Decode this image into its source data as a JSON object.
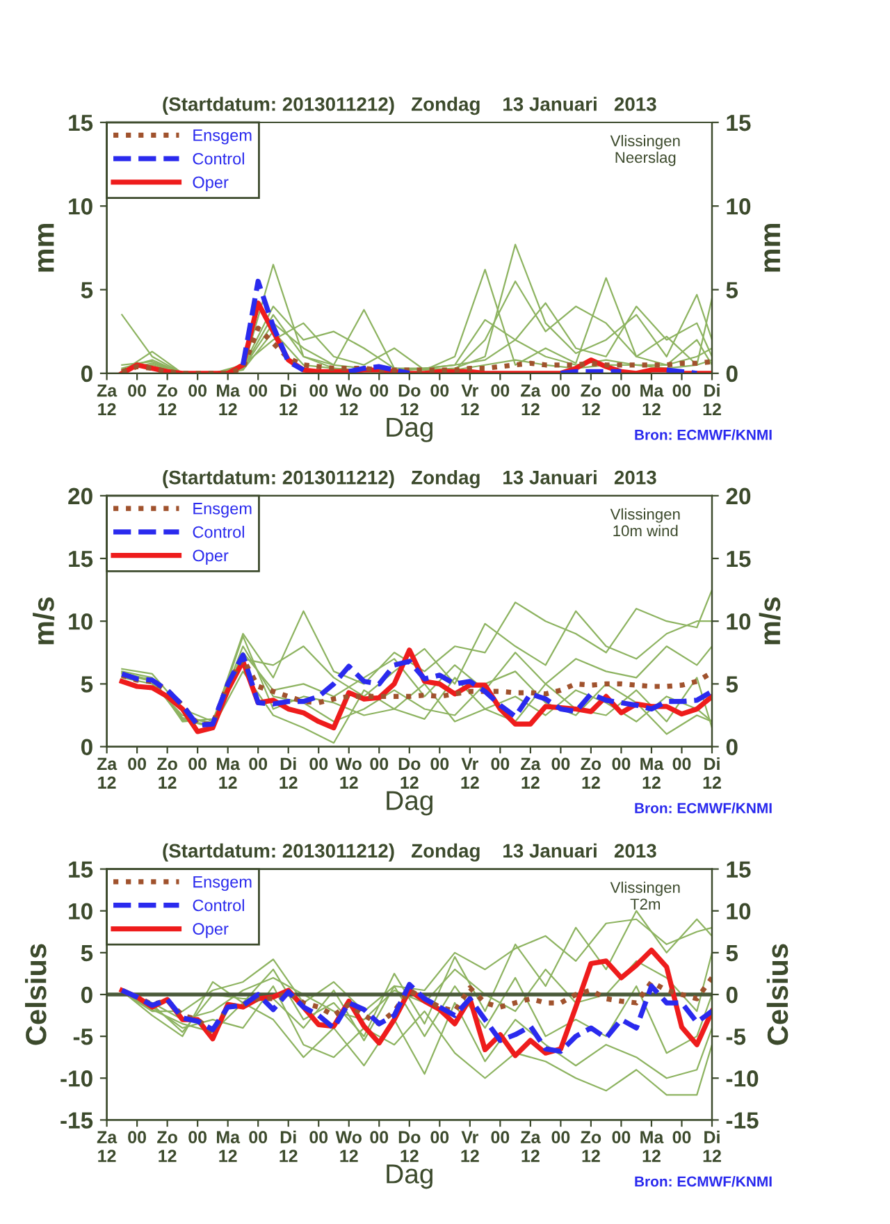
{
  "chart_data": [
    {
      "type": "line",
      "title": "(Startdatum: 2013011212)   Zondag    13 Januari   2013",
      "xlabel": "Dag",
      "ylabel": "mm",
      "y2label": "mm",
      "annotations": [
        "Vlissingen\nNeerslag",
        "Bron: ECMWF/KNMI"
      ],
      "xlim": [
        "2013-01-12T12:00",
        "2013-01-22T12:00"
      ],
      "xticks": [
        {
          "value": "2013-01-12T12:00",
          "label": "Za\n12"
        },
        {
          "value": "2013-01-13T00:00",
          "label": "00"
        },
        {
          "value": "2013-01-13T12:00",
          "label": "Zo\n12"
        },
        {
          "value": "2013-01-14T00:00",
          "label": "00"
        },
        {
          "value": "2013-01-14T12:00",
          "label": "Ma\n12"
        },
        {
          "value": "2013-01-15T00:00",
          "label": "00"
        },
        {
          "value": "2013-01-15T12:00",
          "label": "Di\n12"
        },
        {
          "value": "2013-01-16T00:00",
          "label": "00"
        },
        {
          "value": "2013-01-16T12:00",
          "label": "Wo\n12"
        },
        {
          "value": "2013-01-17T00:00",
          "label": "00"
        },
        {
          "value": "2013-01-17T12:00",
          "label": "Do\n12"
        },
        {
          "value": "2013-01-18T00:00",
          "label": "00"
        },
        {
          "value": "2013-01-18T12:00",
          "label": "Vr\n12"
        },
        {
          "value": "2013-01-19T00:00",
          "label": "00"
        },
        {
          "value": "2013-01-19T12:00",
          "label": "Za\n12"
        },
        {
          "value": "2013-01-20T00:00",
          "label": "00"
        },
        {
          "value": "2013-01-20T12:00",
          "label": "Zo\n12"
        },
        {
          "value": "2013-01-21T00:00",
          "label": "00"
        },
        {
          "value": "2013-01-21T12:00",
          "label": "Ma\n12"
        },
        {
          "value": "2013-01-22T00:00",
          "label": "00"
        },
        {
          "value": "2013-01-22T12:00",
          "label": "Di\n12"
        }
      ],
      "ylim": [
        0,
        15
      ],
      "yticks": [
        0,
        5,
        10,
        15
      ],
      "y2lim": [
        0,
        15
      ],
      "y2ticks": [
        0,
        5,
        10,
        15
      ],
      "legend": "top left",
      "grid": false,
      "x": [
        "2013-01-12T18:00",
        "2013-01-13T00:00",
        "2013-01-13T06:00",
        "2013-01-13T12:00",
        "2013-01-13T18:00",
        "2013-01-14T00:00",
        "2013-01-14T06:00",
        "2013-01-14T12:00",
        "2013-01-14T18:00",
        "2013-01-15T00:00",
        "2013-01-15T06:00",
        "2013-01-15T12:00",
        "2013-01-15T18:00",
        "2013-01-16T00:00",
        "2013-01-16T06:00",
        "2013-01-16T12:00",
        "2013-01-16T18:00",
        "2013-01-17T00:00",
        "2013-01-17T06:00",
        "2013-01-17T12:00",
        "2013-01-17T18:00",
        "2013-01-18T00:00",
        "2013-01-18T06:00",
        "2013-01-18T12:00",
        "2013-01-18T18:00",
        "2013-01-19T00:00",
        "2013-01-19T06:00",
        "2013-01-19T12:00",
        "2013-01-19T18:00",
        "2013-01-20T00:00",
        "2013-01-20T06:00",
        "2013-01-20T12:00",
        "2013-01-20T18:00",
        "2013-01-21T00:00",
        "2013-01-21T06:00",
        "2013-01-21T12:00",
        "2013-01-21T18:00",
        "2013-01-22T00:00",
        "2013-01-22T06:00",
        "2013-01-22T12:00"
      ],
      "series": [
        {
          "color": "#8db360",
          "x": [
            "2013-01-12T18:00",
            "2013-01-13T06:00",
            "2013-01-13T18:00",
            "2013-01-14T06:00",
            "2013-01-14T18:00",
            "2013-01-15T06:00",
            "2013-01-15T18:00",
            "2013-01-16T06:00",
            "2013-01-16T18:00",
            "2013-01-17T06:00",
            "2013-01-17T18:00",
            "2013-01-18T06:00",
            "2013-01-18T18:00",
            "2013-01-19T06:00",
            "2013-01-19T18:00",
            "2013-01-20T06:00",
            "2013-01-20T18:00",
            "2013-01-21T06:00",
            "2013-01-21T18:00",
            "2013-01-22T06:00",
            "2013-01-22T12:00"
          ],
          "values": [
            3.5,
            1.0,
            0.0,
            0.0,
            0.3,
            3.0,
            1.5,
            0.5,
            0.3,
            0.2,
            0.3,
            0.5,
            0.8,
            2.0,
            1.0,
            0.5,
            0.8,
            0.5,
            0.3,
            0.5,
            0.8
          ]
        },
        {
          "color": "#8db360",
          "x": [
            "2013-01-12T18:00",
            "2013-01-13T06:00",
            "2013-01-13T18:00",
            "2013-01-14T06:00",
            "2013-01-14T18:00",
            "2013-01-15T06:00",
            "2013-01-15T18:00",
            "2013-01-16T06:00",
            "2013-01-16T18:00",
            "2013-01-17T06:00",
            "2013-01-17T18:00",
            "2013-01-18T06:00",
            "2013-01-18T18:00",
            "2013-01-19T06:00",
            "2013-01-19T18:00",
            "2013-01-20T06:00",
            "2013-01-20T18:00",
            "2013-01-21T06:00",
            "2013-01-21T18:00",
            "2013-01-22T06:00",
            "2013-01-22T12:00"
          ],
          "values": [
            0.2,
            0.5,
            0.0,
            0.0,
            0.2,
            6.5,
            1.0,
            0.5,
            3.8,
            0.3,
            0.2,
            1.0,
            6.2,
            0.5,
            1.5,
            0.6,
            5.7,
            1.0,
            0.5,
            1.0,
            1.5
          ]
        },
        {
          "color": "#8db360",
          "x": [
            "2013-01-12T18:00",
            "2013-01-13T06:00",
            "2013-01-13T18:00",
            "2013-01-14T06:00",
            "2013-01-14T18:00",
            "2013-01-15T06:00",
            "2013-01-15T18:00",
            "2013-01-16T06:00",
            "2013-01-16T18:00",
            "2013-01-17T06:00",
            "2013-01-17T18:00",
            "2013-01-18T06:00",
            "2013-01-18T18:00",
            "2013-01-19T06:00",
            "2013-01-19T18:00",
            "2013-01-20T06:00",
            "2013-01-20T18:00",
            "2013-01-21T06:00",
            "2013-01-21T18:00",
            "2013-01-22T06:00",
            "2013-01-22T12:00"
          ],
          "values": [
            0.1,
            1.3,
            0.0,
            0.0,
            0.5,
            2.0,
            3.0,
            1.0,
            0.5,
            1.5,
            0.2,
            0.3,
            1.0,
            7.7,
            3.0,
            1.2,
            2.0,
            3.5,
            1.0,
            4.7,
            2.0
          ]
        },
        {
          "color": "#8db360",
          "x": [
            "2013-01-12T18:00",
            "2013-01-13T06:00",
            "2013-01-13T18:00",
            "2013-01-14T06:00",
            "2013-01-14T18:00",
            "2013-01-15T06:00",
            "2013-01-15T18:00",
            "2013-01-16T06:00",
            "2013-01-16T18:00",
            "2013-01-17T06:00",
            "2013-01-17T18:00",
            "2013-01-18T06:00",
            "2013-01-18T18:00",
            "2013-01-19T06:00",
            "2013-01-19T18:00",
            "2013-01-20T06:00",
            "2013-01-20T18:00",
            "2013-01-21T06:00",
            "2013-01-21T18:00",
            "2013-01-22T06:00",
            "2013-01-22T12:00"
          ],
          "values": [
            0.3,
            0.8,
            0.0,
            0.0,
            0.4,
            4.0,
            2.0,
            2.5,
            1.5,
            0.3,
            0.3,
            0.2,
            2.0,
            5.5,
            2.5,
            4.0,
            3.0,
            1.0,
            2.2,
            0.5,
            4.5
          ]
        },
        {
          "color": "#8db360",
          "x": [
            "2013-01-12T18:00",
            "2013-01-13T06:00",
            "2013-01-13T18:00",
            "2013-01-14T06:00",
            "2013-01-14T18:00",
            "2013-01-15T06:00",
            "2013-01-15T18:00",
            "2013-01-16T06:00",
            "2013-01-16T18:00",
            "2013-01-17T06:00",
            "2013-01-17T18:00",
            "2013-01-18T06:00",
            "2013-01-18T18:00",
            "2013-01-19T06:00",
            "2013-01-19T18:00",
            "2013-01-20T06:00",
            "2013-01-20T18:00",
            "2013-01-21T06:00",
            "2013-01-21T18:00",
            "2013-01-22T06:00",
            "2013-01-22T12:00"
          ],
          "values": [
            0.5,
            0.7,
            0.0,
            0.0,
            0.3,
            3.5,
            1.0,
            0.3,
            0.2,
            0.2,
            0.3,
            0.5,
            3.2,
            2.0,
            4.2,
            1.5,
            1.0,
            4.0,
            2.0,
            3.0,
            1.0
          ]
        },
        {
          "color": "#8db360",
          "x": [
            "2013-01-12T18:00",
            "2013-01-13T06:00",
            "2013-01-13T18:00",
            "2013-01-14T06:00",
            "2013-01-14T18:00",
            "2013-01-15T06:00",
            "2013-01-15T18:00",
            "2013-01-16T06:00",
            "2013-01-16T18:00",
            "2013-01-17T06:00",
            "2013-01-17T18:00",
            "2013-01-18T06:00",
            "2013-01-18T18:00",
            "2013-01-19T06:00",
            "2013-01-19T18:00",
            "2013-01-20T06:00",
            "2013-01-20T18:00",
            "2013-01-21T06:00",
            "2013-01-21T18:00",
            "2013-01-22T06:00",
            "2013-01-22T12:00"
          ],
          "values": [
            0.2,
            0.6,
            0.0,
            0.0,
            0.2,
            2.5,
            0.5,
            0.3,
            0.1,
            0.1,
            0.3,
            0.2,
            0.5,
            0.8,
            0.5,
            0.3,
            0.5,
            0.5,
            0.5,
            2.0,
            0.5
          ]
        },
        {
          "name": "Ensgem",
          "color": "#a0522d",
          "line_style": "dotted",
          "values": [
            0.1,
            0.4,
            0.3,
            0.1,
            0.0,
            0.0,
            0.0,
            0.0,
            0.3,
            2.7,
            1.8,
            0.9,
            0.5,
            0.4,
            0.3,
            0.3,
            0.3,
            0.2,
            0.2,
            0.2,
            0.2,
            0.2,
            0.2,
            0.3,
            0.3,
            0.4,
            0.5,
            0.6,
            0.5,
            0.5,
            0.5,
            0.6,
            0.5,
            0.5,
            0.5,
            0.5,
            0.5,
            0.6,
            0.6,
            0.7
          ]
        },
        {
          "name": "Control",
          "color": "#2a2aee",
          "line_style": "dashed",
          "values": [
            null,
            null,
            null,
            null,
            null,
            null,
            null,
            null,
            0.5,
            5.5,
            2.8,
            0.7,
            0.2,
            null,
            null,
            0.1,
            0.3,
            0.4,
            0.2,
            0.0,
            null,
            null,
            null,
            null,
            null,
            null,
            null,
            null,
            null,
            0.0,
            0.1,
            0.1,
            0.1,
            0.1,
            null,
            null,
            0.2,
            0.1,
            0.0,
            null
          ]
        },
        {
          "name": "Oper",
          "color": "#ee1c1c",
          "line_style": "solid",
          "values": [
            0.0,
            0.5,
            0.3,
            0.1,
            0.0,
            0.0,
            0.0,
            0.0,
            0.5,
            4.2,
            2.5,
            0.8,
            0.2,
            0.1,
            0.1,
            0.1,
            0.2,
            0.2,
            0.1,
            0.0,
            0.0,
            0.1,
            0.1,
            0.1,
            0.0,
            0.0,
            0.0,
            0.0,
            0.0,
            0.0,
            0.3,
            0.8,
            0.4,
            0.1,
            0.0,
            0.2,
            0.2,
            0.0,
            0.0,
            0.0
          ]
        }
      ]
    },
    {
      "type": "line",
      "title": "(Startdatum: 2013011212)   Zondag    13 Januari   2013",
      "xlabel": "Dag",
      "ylabel": "m/s",
      "y2label": "m/s",
      "annotations": [
        "Vlissingen\n10m wind",
        "Bron: ECMWF/KNMI"
      ],
      "xlim": [
        "2013-01-12T12:00",
        "2013-01-22T12:00"
      ],
      "xticks": [
        {
          "value": "2013-01-12T12:00",
          "label": "Za\n12"
        },
        {
          "value": "2013-01-13T00:00",
          "label": "00"
        },
        {
          "value": "2013-01-13T12:00",
          "label": "Zo\n12"
        },
        {
          "value": "2013-01-14T00:00",
          "label": "00"
        },
        {
          "value": "2013-01-14T12:00",
          "label": "Ma\n12"
        },
        {
          "value": "2013-01-15T00:00",
          "label": "00"
        },
        {
          "value": "2013-01-15T12:00",
          "label": "Di\n12"
        },
        {
          "value": "2013-01-16T00:00",
          "label": "00"
        },
        {
          "value": "2013-01-16T12:00",
          "label": "Wo\n12"
        },
        {
          "value": "2013-01-17T00:00",
          "label": "00"
        },
        {
          "value": "2013-01-17T12:00",
          "label": "Do\n12"
        },
        {
          "value": "2013-01-18T00:00",
          "label": "00"
        },
        {
          "value": "2013-01-18T12:00",
          "label": "Vr\n12"
        },
        {
          "value": "2013-01-19T00:00",
          "label": "00"
        },
        {
          "value": "2013-01-19T12:00",
          "label": "Za\n12"
        },
        {
          "value": "2013-01-20T00:00",
          "label": "00"
        },
        {
          "value": "2013-01-20T12:00",
          "label": "Zo\n12"
        },
        {
          "value": "2013-01-21T00:00",
          "label": "00"
        },
        {
          "value": "2013-01-21T12:00",
          "label": "Ma\n12"
        },
        {
          "value": "2013-01-22T00:00",
          "label": "00"
        },
        {
          "value": "2013-01-22T12:00",
          "label": "Di\n12"
        }
      ],
      "ylim": [
        0,
        20
      ],
      "yticks": [
        0,
        5,
        10,
        15,
        20
      ],
      "y2lim": [
        0,
        20
      ],
      "y2ticks": [
        0,
        5,
        10,
        15,
        20
      ],
      "legend": "top left",
      "grid": false,
      "x": [
        "2013-01-12T18:00",
        "2013-01-13T00:00",
        "2013-01-13T06:00",
        "2013-01-13T12:00",
        "2013-01-13T18:00",
        "2013-01-14T00:00",
        "2013-01-14T06:00",
        "2013-01-14T12:00",
        "2013-01-14T18:00",
        "2013-01-15T00:00",
        "2013-01-15T06:00",
        "2013-01-15T12:00",
        "2013-01-15T18:00",
        "2013-01-16T00:00",
        "2013-01-16T06:00",
        "2013-01-16T12:00",
        "2013-01-16T18:00",
        "2013-01-17T00:00",
        "2013-01-17T06:00",
        "2013-01-17T12:00",
        "2013-01-17T18:00",
        "2013-01-18T00:00",
        "2013-01-18T06:00",
        "2013-01-18T12:00",
        "2013-01-18T18:00",
        "2013-01-19T00:00",
        "2013-01-19T06:00",
        "2013-01-19T12:00",
        "2013-01-19T18:00",
        "2013-01-20T00:00",
        "2013-01-20T06:00",
        "2013-01-20T12:00",
        "2013-01-20T18:00",
        "2013-01-21T00:00",
        "2013-01-21T06:00",
        "2013-01-21T12:00",
        "2013-01-21T18:00",
        "2013-01-22T00:00",
        "2013-01-22T06:00",
        "2013-01-22T12:00"
      ],
      "series": [
        {
          "color": "#8db360",
          "x": [
            "2013-01-12T18:00",
            "2013-01-13T06:00",
            "2013-01-13T18:00",
            "2013-01-14T06:00",
            "2013-01-14T18:00",
            "2013-01-15T06:00",
            "2013-01-15T18:00",
            "2013-01-16T06:00",
            "2013-01-16T18:00",
            "2013-01-17T06:00",
            "2013-01-17T18:00",
            "2013-01-18T06:00",
            "2013-01-18T18:00",
            "2013-01-19T06:00",
            "2013-01-19T18:00",
            "2013-01-20T06:00",
            "2013-01-20T18:00",
            "2013-01-21T06:00",
            "2013-01-21T18:00",
            "2013-01-22T06:00",
            "2013-01-22T12:00"
          ],
          "values": [
            6.2,
            5.8,
            3.0,
            2.0,
            9.0,
            5.5,
            10.8,
            6.0,
            5.0,
            7.5,
            6.0,
            8.0,
            7.5,
            11.5,
            10.0,
            9.0,
            7.5,
            11.0,
            10.0,
            9.5,
            12.5
          ]
        },
        {
          "color": "#8db360",
          "x": [
            "2013-01-12T18:00",
            "2013-01-13T06:00",
            "2013-01-13T18:00",
            "2013-01-14T06:00",
            "2013-01-14T18:00",
            "2013-01-15T06:00",
            "2013-01-15T18:00",
            "2013-01-16T06:00",
            "2013-01-16T18:00",
            "2013-01-17T06:00",
            "2013-01-17T18:00",
            "2013-01-18T06:00",
            "2013-01-18T18:00",
            "2013-01-19T06:00",
            "2013-01-19T18:00",
            "2013-01-20T06:00",
            "2013-01-20T18:00",
            "2013-01-21T06:00",
            "2013-01-21T18:00",
            "2013-01-22T06:00",
            "2013-01-22T12:00"
          ],
          "values": [
            5.5,
            5.0,
            2.5,
            1.8,
            8.0,
            4.0,
            3.5,
            2.0,
            3.0,
            4.5,
            3.0,
            2.5,
            5.0,
            6.0,
            3.5,
            2.5,
            5.0,
            3.5,
            1.0,
            2.5,
            2.0
          ]
        },
        {
          "color": "#8db360",
          "x": [
            "2013-01-12T18:00",
            "2013-01-13T06:00",
            "2013-01-13T18:00",
            "2013-01-14T06:00",
            "2013-01-14T18:00",
            "2013-01-15T06:00",
            "2013-01-15T18:00",
            "2013-01-16T06:00",
            "2013-01-16T18:00",
            "2013-01-17T06:00",
            "2013-01-17T18:00",
            "2013-01-18T06:00",
            "2013-01-18T18:00",
            "2013-01-19T06:00",
            "2013-01-19T18:00",
            "2013-01-20T06:00",
            "2013-01-20T18:00",
            "2013-01-21T06:00",
            "2013-01-21T18:00",
            "2013-01-22T06:00",
            "2013-01-22T12:00"
          ],
          "values": [
            6.0,
            5.5,
            2.0,
            2.2,
            7.0,
            6.5,
            8.0,
            5.5,
            4.0,
            6.0,
            7.8,
            5.0,
            9.8,
            8.0,
            6.5,
            10.8,
            8.0,
            7.0,
            9.0,
            10.0,
            10.0
          ]
        },
        {
          "color": "#8db360",
          "x": [
            "2013-01-12T18:00",
            "2013-01-13T06:00",
            "2013-01-13T18:00",
            "2013-01-14T06:00",
            "2013-01-14T18:00",
            "2013-01-15T06:00",
            "2013-01-15T18:00",
            "2013-01-16T06:00",
            "2013-01-16T18:00",
            "2013-01-17T06:00",
            "2013-01-17T18:00",
            "2013-01-18T06:00",
            "2013-01-18T18:00",
            "2013-01-19T06:00",
            "2013-01-19T18:00",
            "2013-01-20T06:00",
            "2013-01-20T18:00",
            "2013-01-21T06:00",
            "2013-01-21T18:00",
            "2013-01-22T06:00",
            "2013-01-22T12:00"
          ],
          "values": [
            5.8,
            5.2,
            2.2,
            1.5,
            6.0,
            2.5,
            1.5,
            0.3,
            4.5,
            3.0,
            2.2,
            5.5,
            3.0,
            2.0,
            5.0,
            3.0,
            2.5,
            4.5,
            2.0,
            5.5,
            1.5
          ]
        },
        {
          "color": "#8db360",
          "x": [
            "2013-01-12T18:00",
            "2013-01-13T06:00",
            "2013-01-13T18:00",
            "2013-01-14T06:00",
            "2013-01-14T18:00",
            "2013-01-15T06:00",
            "2013-01-15T18:00",
            "2013-01-16T06:00",
            "2013-01-16T18:00",
            "2013-01-17T06:00",
            "2013-01-17T18:00",
            "2013-01-18T06:00",
            "2013-01-18T18:00",
            "2013-01-19T06:00",
            "2013-01-19T18:00",
            "2013-01-20T06:00",
            "2013-01-20T18:00",
            "2013-01-21T06:00",
            "2013-01-21T18:00",
            "2013-01-22T06:00",
            "2013-01-22T12:00"
          ],
          "values": [
            5.6,
            5.4,
            2.3,
            1.9,
            7.5,
            4.5,
            5.0,
            4.0,
            5.5,
            7.0,
            4.0,
            6.5,
            4.5,
            7.5,
            5.0,
            7.0,
            6.0,
            5.5,
            8.0,
            6.5,
            8.0
          ]
        },
        {
          "color": "#8db360",
          "x": [
            "2013-01-12T18:00",
            "2013-01-13T06:00",
            "2013-01-13T18:00",
            "2013-01-14T06:00",
            "2013-01-14T18:00",
            "2013-01-15T06:00",
            "2013-01-15T18:00",
            "2013-01-16T06:00",
            "2013-01-16T18:00",
            "2013-01-17T06:00",
            "2013-01-17T18:00",
            "2013-01-18T06:00",
            "2013-01-18T18:00",
            "2013-01-19T06:00",
            "2013-01-19T18:00",
            "2013-01-20T06:00",
            "2013-01-20T18:00",
            "2013-01-21T06:00",
            "2013-01-21T18:00",
            "2013-01-22T06:00",
            "2013-01-22T12:00"
          ],
          "values": [
            5.9,
            5.3,
            2.1,
            1.7,
            8.8,
            3.0,
            4.0,
            3.5,
            2.5,
            3.0,
            5.0,
            2.0,
            3.0,
            4.0,
            2.5,
            4.5,
            3.5,
            2.0,
            4.0,
            3.0,
            2.0
          ]
        },
        {
          "name": "Ensgem",
          "color": "#a0522d",
          "line_style": "dotted",
          "values": [
            5.7,
            5.3,
            5.2,
            4.5,
            3.3,
            1.8,
            1.8,
            5.0,
            7.0,
            4.8,
            4.4,
            4.0,
            3.6,
            3.5,
            3.8,
            4.0,
            4.0,
            4.0,
            4.0,
            4.0,
            4.1,
            4.0,
            4.2,
            4.4,
            4.4,
            4.4,
            4.3,
            4.3,
            4.2,
            4.5,
            5.0,
            4.9,
            5.0,
            5.0,
            4.9,
            4.8,
            4.8,
            4.9,
            5.2,
            5.9
          ]
        },
        {
          "name": "Control",
          "color": "#2a2aee",
          "line_style": "dashed",
          "values": [
            5.8,
            5.4,
            5.3,
            4.5,
            3.3,
            1.7,
            1.8,
            5.0,
            7.3,
            3.5,
            3.4,
            3.6,
            3.6,
            4.0,
            5.0,
            6.4,
            5.2,
            5.0,
            6.5,
            6.8,
            5.4,
            5.7,
            5.0,
            5.2,
            4.4,
            3.3,
            2.4,
            4.2,
            3.8,
            3.0,
            2.8,
            4.2,
            3.7,
            3.5,
            3.3,
            3.0,
            3.6,
            3.6,
            3.7,
            4.4
          ]
        },
        {
          "name": "Oper",
          "color": "#ee1c1c",
          "line_style": "solid",
          "values": [
            5.2,
            4.8,
            4.7,
            4.0,
            3.0,
            1.2,
            1.5,
            4.5,
            6.8,
            3.5,
            3.7,
            3.0,
            2.7,
            2.0,
            1.5,
            4.3,
            3.8,
            3.9,
            5.0,
            7.7,
            5.2,
            5.0,
            4.2,
            4.9,
            4.9,
            3.0,
            1.8,
            1.8,
            3.2,
            3.1,
            3.0,
            2.8,
            4.0,
            2.7,
            3.4,
            3.2,
            3.2,
            2.6,
            3.0,
            4.0
          ]
        }
      ]
    },
    {
      "type": "line",
      "title": "(Startdatum: 2013011212)   Zondag    13 Januari   2013",
      "xlabel": "Dag",
      "ylabel": "Celsius",
      "y2label": "Celsius",
      "annotations": [
        "Vlissingen\nT2m",
        "Bron: ECMWF/KNMI"
      ],
      "xlim": [
        "2013-01-12T12:00",
        "2013-01-22T12:00"
      ],
      "xticks": [
        {
          "value": "2013-01-12T12:00",
          "label": "Za\n12"
        },
        {
          "value": "2013-01-13T00:00",
          "label": "00"
        },
        {
          "value": "2013-01-13T12:00",
          "label": "Zo\n12"
        },
        {
          "value": "2013-01-14T00:00",
          "label": "00"
        },
        {
          "value": "2013-01-14T12:00",
          "label": "Ma\n12"
        },
        {
          "value": "2013-01-15T00:00",
          "label": "00"
        },
        {
          "value": "2013-01-15T12:00",
          "label": "Di\n12"
        },
        {
          "value": "2013-01-16T00:00",
          "label": "00"
        },
        {
          "value": "2013-01-16T12:00",
          "label": "Wo\n12"
        },
        {
          "value": "2013-01-17T00:00",
          "label": "00"
        },
        {
          "value": "2013-01-17T12:00",
          "label": "Do\n12"
        },
        {
          "value": "2013-01-18T00:00",
          "label": "00"
        },
        {
          "value": "2013-01-18T12:00",
          "label": "Vr\n12"
        },
        {
          "value": "2013-01-19T00:00",
          "label": "00"
        },
        {
          "value": "2013-01-19T12:00",
          "label": "Za\n12"
        },
        {
          "value": "2013-01-20T00:00",
          "label": "00"
        },
        {
          "value": "2013-01-20T12:00",
          "label": "Zo\n12"
        },
        {
          "value": "2013-01-21T00:00",
          "label": "00"
        },
        {
          "value": "2013-01-21T12:00",
          "label": "Ma\n12"
        },
        {
          "value": "2013-01-22T00:00",
          "label": "00"
        },
        {
          "value": "2013-01-22T12:00",
          "label": "Di\n12"
        }
      ],
      "ylim": [
        -15,
        15
      ],
      "yticks": [
        -15,
        -10,
        -5,
        0,
        5,
        10,
        15
      ],
      "y2lim": [
        -15,
        15
      ],
      "y2ticks": [
        -15,
        -10,
        -5,
        0,
        5,
        10,
        15
      ],
      "legend": "top left",
      "grid": false,
      "ref_lines": [
        {
          "axis": "y",
          "value": 0,
          "color": "#4a5a3a"
        }
      ],
      "x": [
        "2013-01-12T18:00",
        "2013-01-13T00:00",
        "2013-01-13T06:00",
        "2013-01-13T12:00",
        "2013-01-13T18:00",
        "2013-01-14T00:00",
        "2013-01-14T06:00",
        "2013-01-14T12:00",
        "2013-01-14T18:00",
        "2013-01-15T00:00",
        "2013-01-15T06:00",
        "2013-01-15T12:00",
        "2013-01-15T18:00",
        "2013-01-16T00:00",
        "2013-01-16T06:00",
        "2013-01-16T12:00",
        "2013-01-16T18:00",
        "2013-01-17T00:00",
        "2013-01-17T06:00",
        "2013-01-17T12:00",
        "2013-01-17T18:00",
        "2013-01-18T00:00",
        "2013-01-18T06:00",
        "2013-01-18T12:00",
        "2013-01-18T18:00",
        "2013-01-19T00:00",
        "2013-01-19T06:00",
        "2013-01-19T12:00",
        "2013-01-19T18:00",
        "2013-01-20T00:00",
        "2013-01-20T06:00",
        "2013-01-20T12:00",
        "2013-01-20T18:00",
        "2013-01-21T00:00",
        "2013-01-21T06:00",
        "2013-01-21T12:00",
        "2013-01-21T18:00",
        "2013-01-22T00:00",
        "2013-01-22T06:00",
        "2013-01-22T12:00"
      ],
      "series": [
        {
          "color": "#8db360",
          "x": [
            "2013-01-12T18:00",
            "2013-01-13T06:00",
            "2013-01-13T18:00",
            "2013-01-14T06:00",
            "2013-01-14T18:00",
            "2013-01-15T06:00",
            "2013-01-15T18:00",
            "2013-01-16T06:00",
            "2013-01-16T18:00",
            "2013-01-17T06:00",
            "2013-01-17T18:00",
            "2013-01-18T06:00",
            "2013-01-18T18:00",
            "2013-01-19T06:00",
            "2013-01-19T18:00",
            "2013-01-20T06:00",
            "2013-01-20T18:00",
            "2013-01-21T06:00",
            "2013-01-21T18:00",
            "2013-01-22T06:00",
            "2013-01-22T12:00"
          ],
          "values": [
            0.3,
            -2.0,
            -2.0,
            0.5,
            1.5,
            4.2,
            -1.0,
            1.5,
            -2.0,
            1.0,
            0.5,
            5.0,
            3.0,
            5.5,
            7.0,
            4.0,
            8.5,
            9.0,
            6.0,
            7.5,
            8.0
          ]
        },
        {
          "color": "#8db360",
          "x": [
            "2013-01-12T18:00",
            "2013-01-13T06:00",
            "2013-01-13T18:00",
            "2013-01-14T06:00",
            "2013-01-14T18:00",
            "2013-01-15T06:00",
            "2013-01-15T18:00",
            "2013-01-16T06:00",
            "2013-01-16T18:00",
            "2013-01-17T06:00",
            "2013-01-17T18:00",
            "2013-01-18T06:00",
            "2013-01-18T18:00",
            "2013-01-19T06:00",
            "2013-01-19T18:00",
            "2013-01-20T06:00",
            "2013-01-20T18:00",
            "2013-01-21T06:00",
            "2013-01-21T18:00",
            "2013-01-22T06:00",
            "2013-01-22T12:00"
          ],
          "values": [
            0.2,
            -1.5,
            -4.0,
            -3.0,
            -4.0,
            1.0,
            -6.0,
            -7.5,
            -4.0,
            -6.0,
            -2.0,
            -7.0,
            -10.0,
            -7.0,
            -8.0,
            -10.0,
            -11.5,
            -9.0,
            -12.0,
            -12.0,
            -6.0
          ]
        },
        {
          "color": "#8db360",
          "x": [
            "2013-01-12T18:00",
            "2013-01-13T06:00",
            "2013-01-13T18:00",
            "2013-01-14T06:00",
            "2013-01-14T18:00",
            "2013-01-15T06:00",
            "2013-01-15T18:00",
            "2013-01-16T06:00",
            "2013-01-16T18:00",
            "2013-01-17T06:00",
            "2013-01-17T18:00",
            "2013-01-18T06:00",
            "2013-01-18T18:00",
            "2013-01-19T06:00",
            "2013-01-19T18:00",
            "2013-01-20T06:00",
            "2013-01-20T18:00",
            "2013-01-21T06:00",
            "2013-01-21T18:00",
            "2013-01-22T06:00",
            "2013-01-22T12:00"
          ],
          "values": [
            0.4,
            -2.5,
            -5.0,
            1.5,
            -1.0,
            3.0,
            -3.0,
            -1.0,
            -5.0,
            2.5,
            -3.5,
            4.5,
            -2.0,
            6.0,
            1.0,
            8.0,
            3.0,
            10.0,
            5.0,
            9.0,
            7.0
          ]
        },
        {
          "color": "#8db360",
          "x": [
            "2013-01-12T18:00",
            "2013-01-13T06:00",
            "2013-01-13T18:00",
            "2013-01-14T06:00",
            "2013-01-14T18:00",
            "2013-01-15T06:00",
            "2013-01-15T18:00",
            "2013-01-16T06:00",
            "2013-01-16T18:00",
            "2013-01-17T06:00",
            "2013-01-17T18:00",
            "2013-01-18T06:00",
            "2013-01-18T18:00",
            "2013-01-19T06:00",
            "2013-01-19T18:00",
            "2013-01-20T06:00",
            "2013-01-20T18:00",
            "2013-01-21T06:00",
            "2013-01-21T18:00",
            "2013-01-22T06:00",
            "2013-01-22T12:00"
          ],
          "values": [
            0.3,
            -1.8,
            -3.5,
            -4.5,
            -1.0,
            -3.0,
            -7.5,
            -4.0,
            -8.5,
            -3.0,
            -9.5,
            -1.0,
            -8.0,
            -3.0,
            -6.0,
            -8.5,
            -6.0,
            -7.5,
            -10.0,
            -9.0,
            -4.0
          ]
        },
        {
          "color": "#8db360",
          "x": [
            "2013-01-12T18:00",
            "2013-01-13T06:00",
            "2013-01-13T18:00",
            "2013-01-14T06:00",
            "2013-01-14T18:00",
            "2013-01-15T06:00",
            "2013-01-15T18:00",
            "2013-01-16T06:00",
            "2013-01-16T18:00",
            "2013-01-17T06:00",
            "2013-01-17T18:00",
            "2013-01-18T06:00",
            "2013-01-18T18:00",
            "2013-01-19T06:00",
            "2013-01-19T18:00",
            "2013-01-20T06:00",
            "2013-01-20T18:00",
            "2013-01-21T06:00",
            "2013-01-21T18:00",
            "2013-01-22T06:00",
            "2013-01-22T12:00"
          ],
          "values": [
            0.5,
            -1.0,
            -3.0,
            -2.0,
            0.5,
            2.0,
            0.0,
            -2.0,
            -3.0,
            0.5,
            -1.0,
            3.0,
            0.0,
            -2.0,
            3.0,
            -1.0,
            0.0,
            4.0,
            2.0,
            -2.0,
            5.0
          ]
        },
        {
          "color": "#8db360",
          "x": [
            "2013-01-12T18:00",
            "2013-01-13T06:00",
            "2013-01-13T18:00",
            "2013-01-14T06:00",
            "2013-01-14T18:00",
            "2013-01-15T06:00",
            "2013-01-15T18:00",
            "2013-01-16T06:00",
            "2013-01-16T18:00",
            "2013-01-17T06:00",
            "2013-01-17T18:00",
            "2013-01-18T06:00",
            "2013-01-18T18:00",
            "2013-01-19T06:00",
            "2013-01-19T18:00",
            "2013-01-20T06:00",
            "2013-01-20T18:00",
            "2013-01-21T06:00",
            "2013-01-21T18:00",
            "2013-01-22T06:00",
            "2013-01-22T12:00"
          ],
          "values": [
            0.4,
            -1.2,
            -4.5,
            0.0,
            -0.5,
            -0.5,
            -4.0,
            0.5,
            -5.5,
            1.0,
            -5.0,
            1.0,
            -4.0,
            2.0,
            -5.0,
            -3.0,
            -5.0,
            1.0,
            -7.0,
            -5.0,
            0.0
          ]
        },
        {
          "name": "Ensgem",
          "color": "#a0522d",
          "line_style": "dotted",
          "values": [
            0.5,
            -0.3,
            -1.2,
            -0.7,
            -2.5,
            -3.0,
            -4.5,
            -1.5,
            -1.2,
            -0.5,
            -0.5,
            0.2,
            -1.0,
            -1.5,
            -2.5,
            -1.2,
            -2.5,
            -3.5,
            -2.0,
            0.5,
            -0.5,
            -1.5,
            -2.0,
            0.8,
            -1.0,
            -1.5,
            -1.0,
            -0.5,
            -1.0,
            -1.0,
            0.0,
            0.5,
            -0.5,
            -0.8,
            -1.0,
            1.5,
            0.5,
            0.0,
            -0.5,
            2.0
          ]
        },
        {
          "name": "Control",
          "color": "#2a2aee",
          "line_style": "dashed",
          "values": [
            0.5,
            -0.3,
            -1.3,
            -0.6,
            -2.8,
            -3.2,
            -4.2,
            -1.5,
            -1.3,
            0.0,
            -1.8,
            0.3,
            -1.5,
            -2.5,
            -4.0,
            -1.0,
            -1.8,
            -3.5,
            -2.5,
            1.2,
            -0.5,
            -1.5,
            -2.5,
            -0.5,
            -3.0,
            -5.5,
            -4.8,
            -3.8,
            -6.5,
            -6.8,
            -5.0,
            -4.0,
            -5.2,
            -3.0,
            -4.0,
            1.0,
            -1.0,
            -1.0,
            -3.3,
            -2.0
          ]
        },
        {
          "name": "Oper",
          "color": "#ee1c1c",
          "line_style": "solid",
          "values": [
            0.5,
            -0.3,
            -1.5,
            -0.6,
            -3.0,
            -3.0,
            -5.3,
            -1.2,
            -1.5,
            -0.5,
            -0.3,
            0.5,
            -1.5,
            -3.6,
            -3.8,
            -0.8,
            -3.8,
            -5.8,
            -3.0,
            0.5,
            -0.8,
            -1.8,
            -3.5,
            -0.5,
            -6.6,
            -4.8,
            -7.3,
            -5.5,
            -7.0,
            -6.5,
            -1.5,
            3.7,
            4.0,
            2.0,
            3.5,
            5.3,
            3.3,
            -3.9,
            -6.0,
            -2.0
          ]
        }
      ]
    }
  ]
}
